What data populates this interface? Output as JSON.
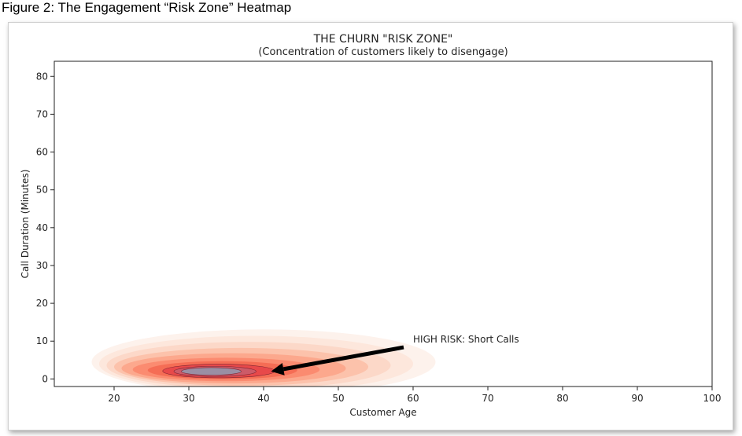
{
  "caption": "Figure 2: The Engagement “Risk Zone” Heatmap",
  "chart_data": {
    "type": "heatmap",
    "title": "THE CHURN \"RISK ZONE\"",
    "subtitle": "(Concentration of customers likely to disengage)",
    "xlabel": "Customer Age",
    "ylabel": "Call Duration (Minutes)",
    "xlim": [
      12,
      100
    ],
    "ylim": [
      -2,
      84
    ],
    "x_ticks": [
      "20",
      "30",
      "40",
      "50",
      "60",
      "70",
      "80",
      "90",
      "100"
    ],
    "y_ticks": [
      "0",
      "10",
      "20",
      "30",
      "40",
      "50",
      "60",
      "70",
      "80"
    ],
    "grid": false,
    "colormap": "Reds",
    "density_peak": {
      "x": 33,
      "y": 2
    },
    "density_extent": {
      "x": [
        20,
        65
      ],
      "y": [
        -1,
        13
      ]
    },
    "annotation": {
      "text": "HIGH RISK: Short Calls",
      "text_at": {
        "x": 60,
        "y": 9
      },
      "arrow_to": {
        "x": 41,
        "y": 2
      }
    }
  },
  "colors": {
    "density_outer": "#fdeee7",
    "density_inner": "#e8494a",
    "density_core": "#9a8fa4",
    "arrow": "#000000"
  }
}
